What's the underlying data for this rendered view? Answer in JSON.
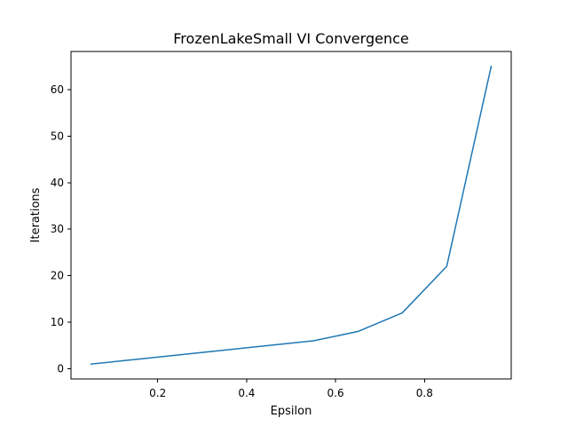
{
  "chart_data": {
    "type": "line",
    "title": "FrozenLakeSmall VI Convergence",
    "xlabel": "Epsilon",
    "ylabel": "Iterations",
    "xlim": [
      0.005,
      0.995
    ],
    "ylim": [
      -2.2,
      68.2
    ],
    "xticks": [
      0.2,
      0.4,
      0.6,
      0.8
    ],
    "xtick_labels": [
      "0.2",
      "0.4",
      "0.6",
      "0.8"
    ],
    "yticks": [
      0,
      10,
      20,
      30,
      40,
      50,
      60
    ],
    "ytick_labels": [
      "0",
      "10",
      "20",
      "30",
      "40",
      "50",
      "60"
    ],
    "grid": false,
    "series": [
      {
        "color": "#1f77b4",
        "x": [
          0.05,
          0.15,
          0.25,
          0.35,
          0.45,
          0.55,
          0.65,
          0.75,
          0.85,
          0.95
        ],
        "y": [
          1,
          2,
          3,
          4,
          5,
          6,
          8,
          12,
          22,
          65
        ]
      }
    ]
  }
}
